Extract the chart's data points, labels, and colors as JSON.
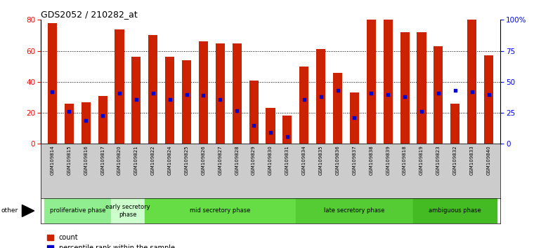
{
  "title": "GDS2052 / 210282_at",
  "samples": [
    "GSM109814",
    "GSM109815",
    "GSM109816",
    "GSM109817",
    "GSM109820",
    "GSM109821",
    "GSM109822",
    "GSM109824",
    "GSM109825",
    "GSM109826",
    "GSM109827",
    "GSM109828",
    "GSM109829",
    "GSM109830",
    "GSM109831",
    "GSM109834",
    "GSM109835",
    "GSM109836",
    "GSM109837",
    "GSM109838",
    "GSM109839",
    "GSM109818",
    "GSM109819",
    "GSM109823",
    "GSM109832",
    "GSM109833",
    "GSM109840"
  ],
  "count_values": [
    78,
    26,
    27,
    31,
    74,
    56,
    70,
    56,
    54,
    66,
    65,
    65,
    41,
    23,
    18,
    50,
    61,
    46,
    33,
    80,
    80,
    72,
    72,
    63,
    26,
    80,
    57
  ],
  "percentile_values": [
    42,
    26,
    19,
    23,
    41,
    36,
    41,
    36,
    40,
    39,
    36,
    27,
    15,
    9,
    6,
    36,
    38,
    43,
    21,
    41,
    40,
    38,
    26,
    41,
    43,
    42,
    40
  ],
  "phases": [
    {
      "label": "proliferative phase",
      "start": 0,
      "end": 3
    },
    {
      "label": "early secretory\nphase",
      "start": 4,
      "end": 5
    },
    {
      "label": "mid secretory phase",
      "start": 6,
      "end": 14
    },
    {
      "label": "late secretory phase",
      "start": 15,
      "end": 21
    },
    {
      "label": "ambiguous phase",
      "start": 22,
      "end": 26
    }
  ],
  "phase_colors": [
    "#90EE90",
    "#ccffcc",
    "#66DD66",
    "#66CC66",
    "#44CC44"
  ],
  "bar_color": "#CC2200",
  "dot_color": "#0000CC",
  "ylim_left": [
    0,
    80
  ],
  "ylim_right": [
    0,
    100
  ],
  "left_ticks": [
    0,
    20,
    40,
    60,
    80
  ],
  "right_ticks": [
    0,
    25,
    50,
    75,
    100
  ],
  "right_tick_labels": [
    "0",
    "25",
    "50",
    "75",
    "100%"
  ],
  "tick_label_bg": "#CCCCCC",
  "plot_bg": "#FFFFFF"
}
